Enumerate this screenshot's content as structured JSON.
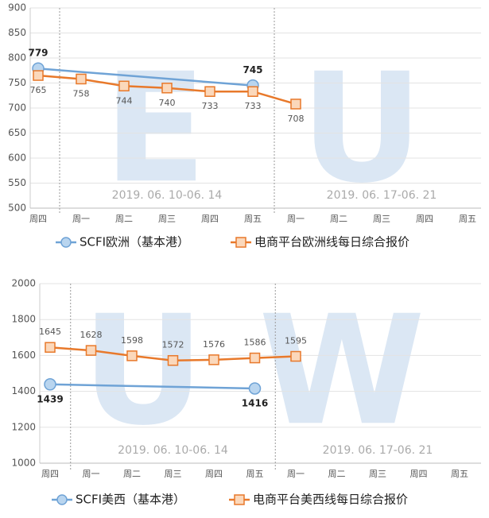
{
  "chart_data": [
    {
      "type": "line",
      "watermark": [
        "E",
        "U"
      ],
      "annotations": [
        "2019. 06. 10-06. 14",
        "2019. 06. 17-06. 21"
      ],
      "categories": [
        "周四",
        "周一",
        "周二",
        "周三",
        "周四",
        "周五",
        "周一",
        "周二",
        "周三",
        "周四",
        "周五"
      ],
      "ylim": [
        500,
        900
      ],
      "yticks": [
        500,
        550,
        600,
        650,
        700,
        750,
        800,
        850,
        900
      ],
      "grid": true,
      "series": [
        {
          "name": "SCFI欧洲（基本港）",
          "color": "#6fa3d6",
          "marker_fill": "#b9d5ef",
          "span_gaps": true,
          "label_position": "above",
          "values": [
            779,
            null,
            null,
            null,
            null,
            745,
            null,
            null,
            null,
            null,
            null
          ]
        },
        {
          "name": "电商平台欧洲线每日综合报价",
          "color": "#e8792b",
          "marker_fill": "#fbd8bb",
          "span_gaps": false,
          "label_position": "below",
          "values": [
            765,
            758,
            744,
            740,
            733,
            733,
            708,
            null,
            null,
            null,
            null
          ]
        }
      ]
    },
    {
      "type": "line",
      "watermark": [
        "U",
        "W"
      ],
      "annotations": [
        "2019. 06. 10-06. 14",
        "2019. 06. 17-06. 21"
      ],
      "categories": [
        "周四",
        "周一",
        "周二",
        "周三",
        "周四",
        "周五",
        "周一",
        "周二",
        "周三",
        "周四",
        "周五"
      ],
      "ylim": [
        1000,
        2000
      ],
      "yticks": [
        1000,
        1200,
        1400,
        1600,
        1800,
        2000
      ],
      "grid": true,
      "series": [
        {
          "name": "SCFI美西（基本港）",
          "color": "#6fa3d6",
          "marker_fill": "#b9d5ef",
          "span_gaps": true,
          "label_position": "below",
          "values": [
            1439,
            null,
            null,
            null,
            null,
            1416,
            null,
            null,
            null,
            null,
            null
          ]
        },
        {
          "name": "电商平台美西线每日综合报价",
          "color": "#e8792b",
          "marker_fill": "#fbd8bb",
          "span_gaps": false,
          "label_position": "above",
          "values": [
            1645,
            1628,
            1598,
            1572,
            1576,
            1586,
            1595,
            null,
            null,
            null,
            null
          ]
        }
      ]
    }
  ]
}
